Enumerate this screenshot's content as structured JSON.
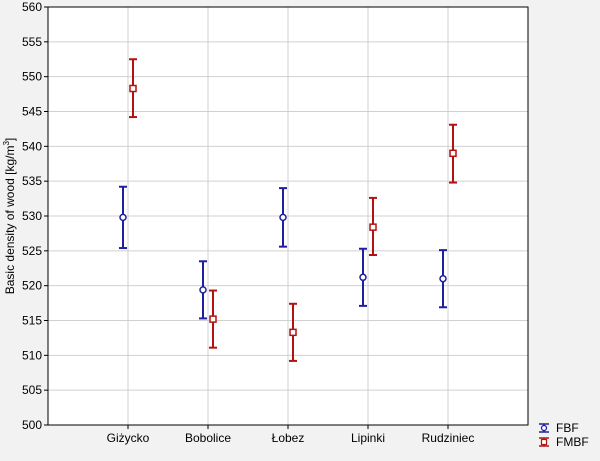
{
  "colors": {
    "background": "#f2f2f2",
    "plot_background": "#ffffff",
    "grid": "#d0d0d0",
    "axis": "#000000",
    "FBF": "#1f1fa0",
    "FMBF": "#b31212"
  },
  "chart_data": {
    "type": "scatter",
    "subtype": "error-bar",
    "title": "",
    "xlabel": "",
    "ylabel": "Basic density of wood [kg/m3]",
    "ylabel_parts": {
      "main": "Basic density of wood [kg/m",
      "sup": "3",
      "end": "]"
    },
    "categories": [
      "Giżycko",
      "Bobolice",
      "Łobez",
      "Lipinki",
      "Rudziniec"
    ],
    "ylim": [
      500,
      560
    ],
    "yticks": [
      "500",
      "505",
      "510",
      "515",
      "520",
      "525",
      "530",
      "535",
      "540",
      "545",
      "550",
      "555",
      "560"
    ],
    "grid": true,
    "legend_position": "bottom-right",
    "series": [
      {
        "name": "FBF",
        "marker": "circle",
        "color": "#1f1fa0",
        "values": [
          529.8,
          519.4,
          529.8,
          521.2,
          521.0
        ],
        "lower": [
          525.4,
          515.3,
          525.6,
          517.1,
          516.9
        ],
        "upper": [
          534.2,
          523.5,
          534.0,
          525.3,
          525.1
        ]
      },
      {
        "name": "FMBF",
        "marker": "square",
        "color": "#b31212",
        "values": [
          548.3,
          515.2,
          513.3,
          528.4,
          539.0
        ],
        "lower": [
          544.2,
          511.1,
          509.2,
          524.4,
          534.8
        ],
        "upper": [
          552.5,
          519.3,
          517.4,
          532.6,
          543.1
        ]
      }
    ]
  }
}
